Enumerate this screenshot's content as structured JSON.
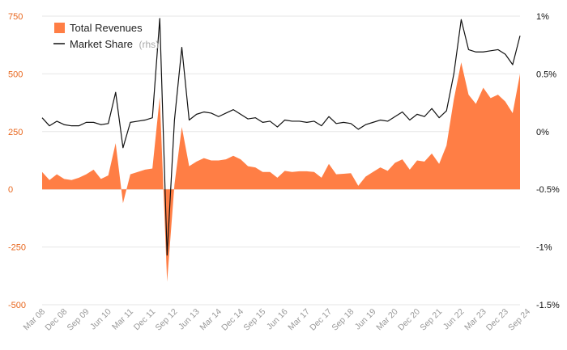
{
  "chart_data": {
    "type": "area",
    "title": "",
    "colors": {
      "revenue": "#ff7e45",
      "share": "#111111",
      "left_ticks": "#e8671e",
      "grid": "#e6e6e6",
      "x_ticks": "#999999"
    },
    "legend": {
      "revenue_label": "Total Revenues",
      "share_label": "Market Share",
      "share_suffix": "(rhs)"
    },
    "left_axis": {
      "ticks": [
        750,
        500,
        250,
        0,
        -250,
        -500
      ],
      "tick_labels": [
        "750",
        "500",
        "250",
        "0",
        "-250",
        "-500"
      ],
      "ylim": [
        -500,
        750
      ]
    },
    "right_axis": {
      "ticks": [
        1,
        0.5,
        0,
        -0.5,
        -1,
        -1.5
      ],
      "tick_labels": [
        "1%",
        "0.5%",
        "0%",
        "-0.5%",
        "-1%",
        "-1.5%"
      ],
      "ylim": [
        -1.5,
        1
      ]
    },
    "x_labels": [
      "Mar 08",
      "Dec 08",
      "Sep 09",
      "Jun 10",
      "Mar 11",
      "Dec 11",
      "Sep 12",
      "Jun 13",
      "Mar 14",
      "Dec 14",
      "Sep 15",
      "Jun 16",
      "Mar 17",
      "Dec 17",
      "Sep 18",
      "Jun 19",
      "Mar 20",
      "Dec 20",
      "Sep 21",
      "Jun 22",
      "Mar 23",
      "Dec 23",
      "Sep 24"
    ],
    "x_labels_step": 3,
    "series": [
      {
        "name": "Total Revenues",
        "axis": "left",
        "values": [
          75,
          40,
          65,
          45,
          40,
          50,
          65,
          85,
          45,
          60,
          200,
          -60,
          65,
          75,
          85,
          90,
          400,
          -400,
          20,
          270,
          100,
          120,
          135,
          125,
          125,
          130,
          145,
          130,
          100,
          95,
          75,
          75,
          50,
          80,
          75,
          78,
          78,
          75,
          50,
          110,
          65,
          67,
          70,
          15,
          55,
          75,
          95,
          80,
          115,
          130,
          85,
          125,
          120,
          155,
          110,
          190,
          390,
          550,
          410,
          370,
          440,
          395,
          410,
          380,
          330,
          500
        ]
      },
      {
        "name": "Market Share",
        "axis": "right",
        "values": [
          0.12,
          0.05,
          0.09,
          0.06,
          0.05,
          0.05,
          0.08,
          0.08,
          0.06,
          0.07,
          0.34,
          -0.14,
          0.08,
          0.09,
          0.1,
          0.12,
          0.98,
          -1.07,
          0.1,
          0.73,
          0.1,
          0.15,
          0.17,
          0.16,
          0.13,
          0.16,
          0.19,
          0.15,
          0.11,
          0.12,
          0.08,
          0.09,
          0.04,
          0.1,
          0.09,
          0.09,
          0.08,
          0.09,
          0.05,
          0.13,
          0.07,
          0.08,
          0.07,
          0.02,
          0.06,
          0.08,
          0.1,
          0.09,
          0.13,
          0.17,
          0.1,
          0.15,
          0.13,
          0.2,
          0.12,
          0.18,
          0.5,
          0.97,
          0.71,
          0.69,
          0.69,
          0.7,
          0.71,
          0.67,
          0.58,
          0.83
        ]
      }
    ]
  }
}
